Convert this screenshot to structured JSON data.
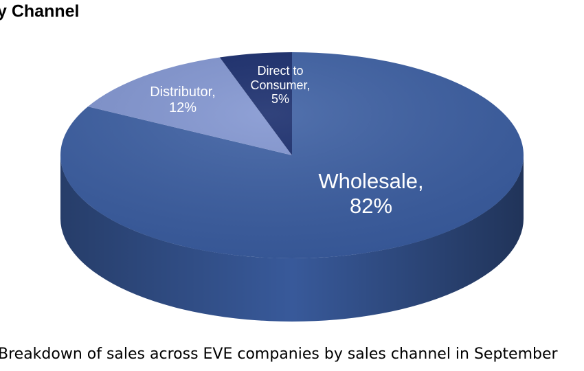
{
  "chart_data": {
    "type": "pie",
    "title": "y Channel",
    "caption": "Breakdown of sales across EVE companies by sales channel in September",
    "categories": [
      "Wholesale,",
      "Distributor,",
      "Direct to Consumer,"
    ],
    "values": [
      82,
      12,
      5
    ],
    "value_labels": [
      "82%",
      "12%",
      "5%"
    ],
    "colors": [
      "#3b5ea2",
      "#8094d0",
      "#15296a"
    ]
  }
}
